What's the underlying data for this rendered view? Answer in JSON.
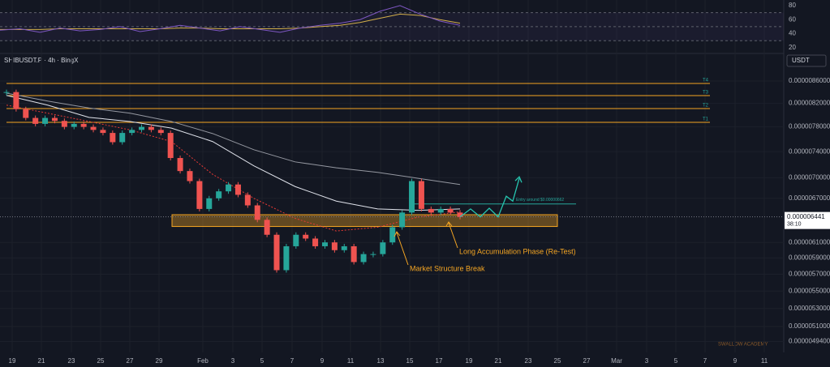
{
  "header": {
    "symbol": "SHIBUSDT.P · 4h · BingX",
    "currency": "USDT",
    "watermark": "SWALLOW ACADEMY"
  },
  "chart_data": {
    "type": "candlestick",
    "log_scale": true,
    "grid": true,
    "closes": [
      8.4e-06,
      8.1e-06,
      7.95e-06,
      7.85e-06,
      7.95e-06,
      7.9e-06,
      7.8e-06,
      7.85e-06,
      7.8e-06,
      7.75e-06,
      7.7e-06,
      7.55e-06,
      7.7e-06,
      7.75e-06,
      7.8e-06,
      7.75e-06,
      7.7e-06,
      7.3e-06,
      7.1e-06,
      6.95e-06,
      6.55e-06,
      6.7e-06,
      6.8e-06,
      6.9e-06,
      6.75e-06,
      6.6e-06,
      6.4e-06,
      6.2e-06,
      5.75e-06,
      6.05e-06,
      6.2e-06,
      6.15e-06,
      6.05e-06,
      6.1e-06,
      6e-06,
      6.05e-06,
      5.85e-06,
      5.95e-06,
      5.95e-06,
      6.1e-06,
      6.3e-06,
      6.5e-06,
      6.95e-06,
      6.55e-06,
      6.5e-06,
      6.55e-06,
      6.5e-06,
      6.44e-06
    ],
    "up_color": "#26a69a",
    "down_color": "#ef5350",
    "ylim": [
      4.86e-06,
      9.1e-06
    ],
    "yticks": [
      {
        "value": 8.6e-06,
        "label": "0.0000086000"
      },
      {
        "value": 8.2e-06,
        "label": "0.0000082000"
      },
      {
        "value": 7.8e-06,
        "label": "0.0000078000"
      },
      {
        "value": 7.4e-06,
        "label": "0.0000074000"
      },
      {
        "value": 7e-06,
        "label": "0.0000070000"
      },
      {
        "value": 6.7e-06,
        "label": "0.0000067000"
      },
      {
        "value": 6.1e-06,
        "label": "0.0000061000"
      },
      {
        "value": 5.9e-06,
        "label": "0.0000059000"
      },
      {
        "value": 5.7e-06,
        "label": "0.0000057000"
      },
      {
        "value": 5.5e-06,
        "label": "0.0000055000"
      },
      {
        "value": 5.3e-06,
        "label": "0.0000053000"
      },
      {
        "value": 5.1e-06,
        "label": "0.0000051000"
      },
      {
        "value": 4.94e-06,
        "label": "0.0000049400"
      }
    ],
    "x_labels": [
      "19",
      "21",
      "23",
      "25",
      "27",
      "29",
      "Feb",
      "3",
      "5",
      "7",
      "9",
      "11",
      "13",
      "15",
      "17",
      "19",
      "21",
      "23",
      "25",
      "27",
      "Mar",
      "3",
      "5",
      "7",
      "9",
      "11"
    ],
    "ma_slow": {
      "color": "#9598a1",
      "values": [
        8.38e-06,
        8.24e-06,
        8.12e-06,
        8.03e-06,
        7.89e-06,
        7.69e-06,
        7.43e-06,
        7.24e-06,
        7.15e-06,
        7.08e-06,
        6.99e-06,
        6.9e-06
      ]
    },
    "ma_fast": {
      "color": "#e0e3eb",
      "values": [
        8.34e-06,
        8.17e-06,
        7.96e-06,
        7.89e-06,
        7.78e-06,
        7.56e-06,
        7.18e-06,
        6.87e-06,
        6.66e-06,
        6.55e-06,
        6.53e-06,
        6.55e-06
      ]
    },
    "ema": {
      "color": "#e53935",
      "values": [
        8.17e-06,
        8.03e-06,
        7.89e-06,
        7.75e-06,
        7.56e-06,
        7.05e-06,
        6.7e-06,
        6.42e-06,
        6.25e-06,
        6.3e-06,
        6.44e-06,
        6.51e-06
      ]
    },
    "targets": [
      {
        "label": "T4",
        "value": 8.556e-06
      },
      {
        "label": "T3",
        "value": 8.337e-06
      },
      {
        "label": "T2",
        "value": 8.11e-06
      },
      {
        "label": "T1",
        "value": 7.876e-06
      }
    ],
    "target_color": "#f5a623",
    "zone": {
      "values": [
        6.31e-06,
        6.47e-06
      ],
      "color": "#f5a623"
    },
    "entry": {
      "label": "Entry around $0.00000662",
      "value": 6.62e-06,
      "color": "#26a69a"
    },
    "projection": {
      "color": "#26c6b0",
      "values": [
        6.44e-06,
        6.55e-06,
        6.44e-06,
        6.56e-06,
        6.44e-06,
        6.73e-06,
        6.66e-06,
        6.99e-06
      ]
    },
    "annotations": [
      "Long Accumulation Phase (Re-Test)",
      "Market Structure Break"
    ],
    "current_price": 6.441e-06,
    "countdown": "38:10",
    "rsi": {
      "color": "#7e57c2",
      "ma_color": "#d4b04a",
      "ylim": [
        13,
        88
      ],
      "yticks": [
        20,
        40,
        60,
        80
      ],
      "levels": [
        30,
        50,
        70
      ],
      "values": [
        45,
        47,
        42,
        48,
        44,
        46,
        50,
        43,
        47,
        52,
        48,
        44,
        50,
        46,
        42,
        48,
        52,
        55,
        60,
        72,
        80,
        68,
        58,
        52
      ],
      "ma_values": [
        46,
        46,
        46,
        47,
        47,
        47,
        47,
        47,
        47,
        48,
        48,
        47,
        47,
        47,
        47,
        48,
        50,
        52,
        56,
        62,
        68,
        66,
        60,
        55
      ]
    }
  }
}
